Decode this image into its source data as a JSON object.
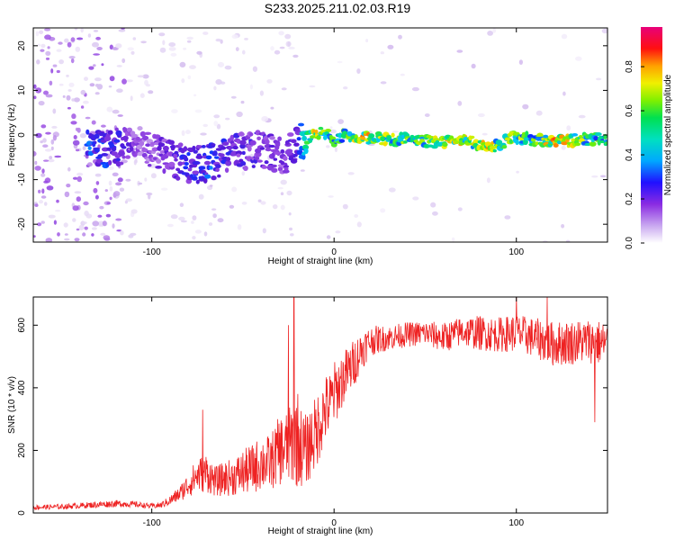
{
  "figure": {
    "title": "S233.2025.211.02.03.R19"
  },
  "chart_data": [
    {
      "type": "heatmap",
      "title": "S233.2025.211.02.03.R19",
      "xlabel": "Height of straight line (km)",
      "ylabel": "Frequency (Hz)",
      "xlim": [
        -165,
        150
      ],
      "ylim": [
        -24,
        24
      ],
      "x_ticks": [
        -100,
        0,
        100
      ],
      "y_ticks": [
        -20,
        -10,
        0,
        10,
        20
      ],
      "colorbar": {
        "label": "Normalized spectral amplitude",
        "range": [
          0,
          0.98
        ],
        "ticks": [
          0.0,
          0.2,
          0.4,
          0.6,
          0.8
        ],
        "colormap": [
          "#ffffff",
          "#d8c4f0",
          "#9b4de3",
          "#5a18d8",
          "#1030ff",
          "#00c8ff",
          "#00e070",
          "#7cf000",
          "#f0f000",
          "#ff9000",
          "#ff1010",
          "#e8007a"
        ]
      },
      "ridge": [
        {
          "x": -125,
          "y": -3,
          "amp": 0.4
        },
        {
          "x": -105,
          "y": -2,
          "amp": 0.2
        },
        {
          "x": -80,
          "y": -7,
          "amp": 0.35
        },
        {
          "x": -68,
          "y": -6,
          "amp": 0.4
        },
        {
          "x": -55,
          "y": -4,
          "amp": 0.3
        },
        {
          "x": -40,
          "y": -3,
          "amp": 0.3
        },
        {
          "x": -28,
          "y": -5,
          "amp": 0.25
        },
        {
          "x": -20,
          "y": -2,
          "amp": 0.3
        },
        {
          "x": -15,
          "y": -1,
          "amp": 0.6
        },
        {
          "x": -10,
          "y": 0.5,
          "amp": 0.9
        },
        {
          "x": -5,
          "y": 0.5,
          "amp": 0.7
        },
        {
          "x": 0,
          "y": -1.5,
          "amp": 0.6
        },
        {
          "x": 5,
          "y": 0,
          "amp": 0.6
        },
        {
          "x": 15,
          "y": -0.5,
          "amp": 0.85
        },
        {
          "x": 30,
          "y": -1,
          "amp": 0.7
        },
        {
          "x": 45,
          "y": -1,
          "amp": 0.65
        },
        {
          "x": 55,
          "y": -1.5,
          "amp": 0.7
        },
        {
          "x": 65,
          "y": -1.5,
          "amp": 0.85
        },
        {
          "x": 75,
          "y": -1.5,
          "amp": 0.7
        },
        {
          "x": 82,
          "y": -2.5,
          "amp": 0.85
        },
        {
          "x": 90,
          "y": -2.5,
          "amp": 0.7
        },
        {
          "x": 98,
          "y": -0.5,
          "amp": 0.7
        },
        {
          "x": 110,
          "y": -1,
          "amp": 0.65
        },
        {
          "x": 122,
          "y": -1.5,
          "amp": 0.85
        },
        {
          "x": 135,
          "y": -1,
          "amp": 0.7
        },
        {
          "x": 148,
          "y": -1,
          "amp": 0.6
        }
      ]
    },
    {
      "type": "line",
      "xlabel": "Height of straight line (km)",
      "ylabel": "SNR (10 * v/v)",
      "xlim": [
        -165,
        150
      ],
      "ylim": [
        0,
        690
      ],
      "x_ticks": [
        -100,
        0,
        100
      ],
      "y_ticks": [
        0,
        200,
        400,
        600
      ],
      "color": "#ee2222",
      "series": [
        {
          "x": [
            -165,
            -150,
            -135,
            -120,
            -110,
            -100,
            -95,
            -90,
            -85,
            -80,
            -75,
            -70,
            -65,
            -60,
            -55,
            -50,
            -45,
            -40,
            -35,
            -30,
            -25,
            -22,
            -20,
            -18,
            -15,
            -12,
            -10,
            -8,
            -5,
            -2,
            0,
            5,
            10,
            15,
            20,
            30,
            40,
            50,
            60,
            70,
            80,
            90,
            100,
            110,
            120,
            130,
            140,
            150
          ],
          "values": [
            18,
            20,
            25,
            30,
            28,
            22,
            25,
            40,
            60,
            90,
            120,
            130,
            100,
            110,
            115,
            130,
            140,
            160,
            160,
            200,
            210,
            230,
            240,
            210,
            200,
            240,
            250,
            290,
            330,
            350,
            380,
            430,
            470,
            520,
            550,
            560,
            570,
            575,
            560,
            580,
            575,
            570,
            575,
            560,
            540,
            545,
            550,
            540
          ],
          "spread": [
            10,
            10,
            12,
            14,
            12,
            10,
            12,
            20,
            30,
            50,
            70,
            80,
            60,
            70,
            75,
            90,
            100,
            110,
            110,
            140,
            150,
            180,
            200,
            160,
            140,
            150,
            150,
            150,
            140,
            130,
            130,
            110,
            100,
            80,
            60,
            50,
            50,
            50,
            60,
            60,
            70,
            70,
            75,
            80,
            90,
            90,
            90,
            90
          ],
          "peaks": [
            {
              "x": -72,
              "y": 330
            },
            {
              "x": -22,
              "y": 690
            },
            {
              "x": -25,
              "y": 600
            },
            {
              "x": 2,
              "y": 420
            },
            {
              "x": 100,
              "y": 690
            },
            {
              "x": 117,
              "y": 690
            },
            {
              "x": 143,
              "y": 290
            }
          ]
        }
      ]
    }
  ]
}
